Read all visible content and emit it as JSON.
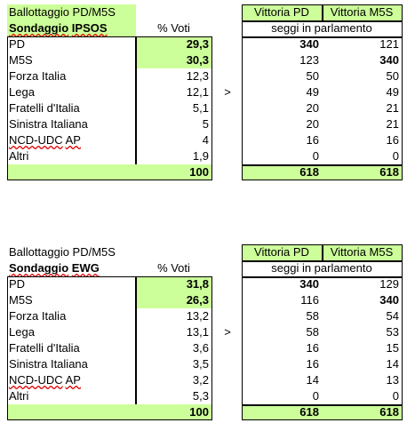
{
  "blocks": [
    {
      "title": "Ballottaggio PD/M5S",
      "poll": "Sondaggio IPSOS",
      "votes_header": "% Voti",
      "seats_headers": [
        "Vittoria PD",
        "Vittoria M5S"
      ],
      "seats_caption": "seggi in parlamento",
      "arrow": ">",
      "rows": [
        [
          "PD",
          "29,3",
          "340",
          "121"
        ],
        [
          "M5S",
          "30,3",
          "123",
          "340"
        ],
        [
          "Forza Italia",
          "12,3",
          "50",
          "50"
        ],
        [
          "Lega",
          "12,1",
          "49",
          "49"
        ],
        [
          "Fratelli d'Italia",
          "5,1",
          "20",
          "21"
        ],
        [
          "Sinistra Italiana",
          "5",
          "20",
          "21"
        ],
        [
          "NCD-UDC AP",
          "4",
          "16",
          "16"
        ],
        [
          "Altri",
          "1,9",
          "0",
          "0"
        ]
      ],
      "total": [
        "100",
        "618",
        "618"
      ]
    },
    {
      "title": "Ballottaggio PD/M5S",
      "poll": "Sondaggio EWG",
      "votes_header": "% Voti",
      "seats_headers": [
        "Vittoria PD",
        "Vittoria M5S"
      ],
      "seats_caption": "seggi in parlamento",
      "arrow": ">",
      "rows": [
        [
          "PD",
          "31,8",
          "340",
          "129"
        ],
        [
          "M5S",
          "26,3",
          "116",
          "340"
        ],
        [
          "Forza Italia",
          "13,2",
          "58",
          "54"
        ],
        [
          "Lega",
          "13,1",
          "58",
          "53"
        ],
        [
          "Fratelli d'Italia",
          "3,6",
          "16",
          "15"
        ],
        [
          "Sinistra Italiana",
          "3,5",
          "16",
          "14"
        ],
        [
          "NCD-UDC AP",
          "3,2",
          "14",
          "13"
        ],
        [
          "Altri",
          "5,3",
          "0",
          "0"
        ]
      ],
      "total": [
        "100",
        "618",
        "618"
      ]
    }
  ]
}
